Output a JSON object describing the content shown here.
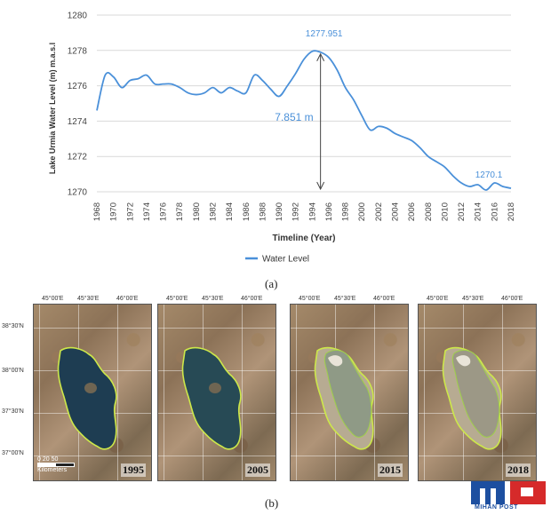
{
  "chart_data": {
    "type": "line",
    "xlabel": "Timeline (Year)",
    "ylabel": "Lake Urmia Water Level (m) m.a.s.l",
    "ylim": [
      1270,
      1280
    ],
    "xlim": [
      1968,
      2018
    ],
    "yticks": [
      "1270",
      "1272",
      "1274",
      "1276",
      "1278",
      "1280"
    ],
    "xticks": [
      "1968",
      "1970",
      "1972",
      "1974",
      "1976",
      "1978",
      "1980",
      "1982",
      "1984",
      "1986",
      "1988",
      "1990",
      "1992",
      "1994",
      "1996",
      "1998",
      "2000",
      "2002",
      "2004",
      "2006",
      "2008",
      "2010",
      "2012",
      "2014",
      "2016",
      "2018"
    ],
    "grid": "horizontal",
    "legend_position": "bottom",
    "series": [
      {
        "name": "Water Level",
        "color": "#4a90d9",
        "x": [
          1968,
          1969,
          1970,
          1971,
          1972,
          1973,
          1974,
          1975,
          1976,
          1977,
          1978,
          1979,
          1980,
          1981,
          1982,
          1983,
          1984,
          1985,
          1986,
          1987,
          1988,
          1989,
          1990,
          1991,
          1992,
          1993,
          1994,
          1995,
          1996,
          1997,
          1998,
          1999,
          2000,
          2001,
          2002,
          2003,
          2004,
          2005,
          2006,
          2007,
          2008,
          2009,
          2010,
          2011,
          2012,
          2013,
          2014,
          2015,
          2016,
          2017,
          2018
        ],
        "y": [
          1274.6,
          1276.6,
          1276.5,
          1275.9,
          1276.3,
          1276.4,
          1276.6,
          1276.1,
          1276.1,
          1276.1,
          1275.9,
          1275.6,
          1275.5,
          1275.6,
          1275.9,
          1275.6,
          1275.9,
          1275.7,
          1275.6,
          1276.6,
          1276.3,
          1275.8,
          1275.4,
          1276.0,
          1276.7,
          1277.5,
          1277.951,
          1277.9,
          1277.6,
          1276.9,
          1275.9,
          1275.2,
          1274.3,
          1273.5,
          1273.7,
          1273.6,
          1273.3,
          1273.1,
          1272.9,
          1272.5,
          1272.0,
          1271.7,
          1271.4,
          1270.9,
          1270.5,
          1270.3,
          1270.4,
          1270.1,
          1270.5,
          1270.3,
          1270.2
        ]
      }
    ],
    "annotations": [
      {
        "text": "1277.951",
        "x": 1995,
        "y": 1277.951
      },
      {
        "text": "1270.1",
        "x": 2015,
        "y": 1270.1
      },
      {
        "text": "7.851 m",
        "x": 1995,
        "y_from": 1270.1,
        "y_to": 1277.951
      }
    ]
  },
  "captions": {
    "a": "(a)",
    "b": "(b)"
  },
  "map_panels": [
    {
      "year": "1995",
      "lake_color": "#1e3d52",
      "shore_color": "#cde84a"
    },
    {
      "year": "2005",
      "lake_color": "#274a55",
      "shore_color": "#cde84a"
    },
    {
      "year": "2015",
      "lake_color": "#8f9a86",
      "shore_color": "#cde84a"
    },
    {
      "year": "2018",
      "lake_color": "#9c9886",
      "shore_color": "#cde84a"
    }
  ],
  "map_lon_labels": [
    "45°00'E",
    "45°30'E",
    "46°00'E"
  ],
  "map_lat_labels": [
    "38°30'N",
    "38°00'N",
    "37°30'N",
    "37°00'N"
  ],
  "scale_bar": {
    "ticks": "0  20  50",
    "unit": "Kilometers"
  },
  "logo": {
    "text": "MIHAN POST"
  }
}
